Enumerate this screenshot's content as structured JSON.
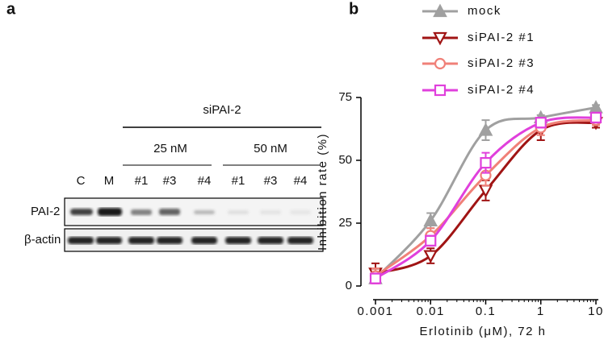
{
  "panel_a": {
    "label": "a",
    "group": "siPAI-2",
    "concentrations": [
      "25 nM",
      "50 nM"
    ],
    "lanes": [
      "C",
      "M",
      "#1",
      "#3",
      "#4",
      "#1",
      "#3",
      "#4"
    ],
    "rows": [
      "PAI-2",
      "β-actin"
    ]
  },
  "chart_data": {
    "type": "line",
    "panel_label": "b",
    "x_label": "Erlotinib (μM), 72 h",
    "y_label": "Inhibition rate (%)",
    "x": [
      0.001,
      0.01,
      0.1,
      1,
      10
    ],
    "xlim": [
      0.001,
      10
    ],
    "xticks": [
      0.001,
      0.01,
      0.1,
      1,
      10
    ],
    "x_log": true,
    "ylim": [
      0,
      75
    ],
    "yticks": [
      0,
      25,
      50,
      75
    ],
    "series": [
      {
        "name": "mock",
        "color": "#a0a0a0",
        "marker": "triangle-up",
        "values": [
          3,
          26,
          62,
          67,
          71
        ],
        "errors": [
          2,
          3,
          4,
          1,
          1
        ]
      },
      {
        "name": "siPAI-2 #1",
        "color": "#a01414",
        "marker": "triangle-down",
        "values": [
          5,
          12,
          38,
          62,
          65
        ],
        "errors": [
          4,
          3,
          4,
          4,
          2
        ]
      },
      {
        "name": "siPAI-2 #3",
        "color": "#f08078",
        "marker": "circle",
        "values": [
          4,
          20,
          44,
          63,
          66
        ],
        "errors": [
          3,
          3,
          4,
          3,
          2
        ]
      },
      {
        "name": "siPAI-2 #4",
        "color": "#e040dc",
        "marker": "square",
        "values": [
          3,
          18,
          49,
          65,
          67
        ],
        "errors": [
          2,
          2,
          4,
          2,
          2
        ]
      }
    ]
  }
}
